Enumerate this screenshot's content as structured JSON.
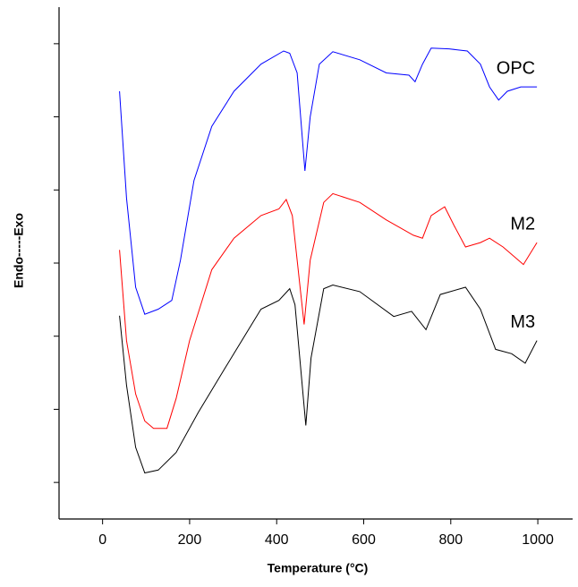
{
  "chart_data": {
    "type": "line",
    "xlabel": "Temperature (°C)",
    "ylabel": "Endo-----Exo",
    "xlim": [
      -100,
      1080
    ],
    "xticks": [
      0,
      200,
      400,
      600,
      800,
      1000
    ],
    "ylim": [
      -0.5,
      6.5
    ],
    "yticks": [
      0,
      1,
      2,
      3,
      4,
      5,
      6
    ],
    "series": [
      {
        "name": "OPC",
        "color": "#0000ff",
        "x": [
          39,
          55,
          76,
          97,
          128,
          159,
          179,
          210,
          251,
          302,
          364,
          416,
          430,
          447,
          465,
          477,
          498,
          529,
          591,
          652,
          704,
          718,
          735,
          755,
          796,
          838,
          868,
          889,
          910,
          930,
          961,
          998
        ],
        "values": [
          5.35,
          3.89,
          2.67,
          2.3,
          2.37,
          2.49,
          3.04,
          4.13,
          4.87,
          5.35,
          5.72,
          5.9,
          5.87,
          5.6,
          4.26,
          5.0,
          5.72,
          5.89,
          5.78,
          5.6,
          5.57,
          5.48,
          5.72,
          5.94,
          5.93,
          5.9,
          5.72,
          5.41,
          5.23,
          5.35,
          5.41,
          5.41
        ]
      },
      {
        "name": "M2",
        "color": "#ff0000",
        "x": [
          39,
          55,
          76,
          97,
          117,
          148,
          169,
          200,
          251,
          302,
          364,
          405,
          422,
          436,
          463,
          477,
          508,
          529,
          591,
          652,
          714,
          735,
          755,
          786,
          807,
          834,
          868,
          889,
          920,
          967,
          998
        ],
        "values": [
          3.18,
          1.94,
          1.21,
          0.84,
          0.74,
          0.74,
          1.15,
          1.94,
          2.91,
          3.34,
          3.65,
          3.74,
          3.87,
          3.65,
          2.16,
          3.04,
          3.83,
          3.95,
          3.83,
          3.59,
          3.38,
          3.34,
          3.65,
          3.77,
          3.52,
          3.22,
          3.28,
          3.34,
          3.22,
          2.98,
          3.28
        ]
      },
      {
        "name": "M3",
        "color": "#000000",
        "x": [
          39,
          55,
          76,
          97,
          128,
          169,
          220,
          282,
          364,
          405,
          430,
          442,
          467,
          479,
          508,
          529,
          591,
          669,
          710,
          743,
          776,
          834,
          868,
          903,
          940,
          971,
          998
        ],
        "values": [
          2.28,
          1.33,
          0.48,
          0.13,
          0.17,
          0.41,
          0.96,
          1.57,
          2.37,
          2.49,
          2.65,
          2.43,
          0.78,
          1.7,
          2.65,
          2.7,
          2.61,
          2.27,
          2.34,
          2.09,
          2.57,
          2.67,
          2.37,
          1.82,
          1.76,
          1.63,
          1.94
        ]
      }
    ]
  }
}
